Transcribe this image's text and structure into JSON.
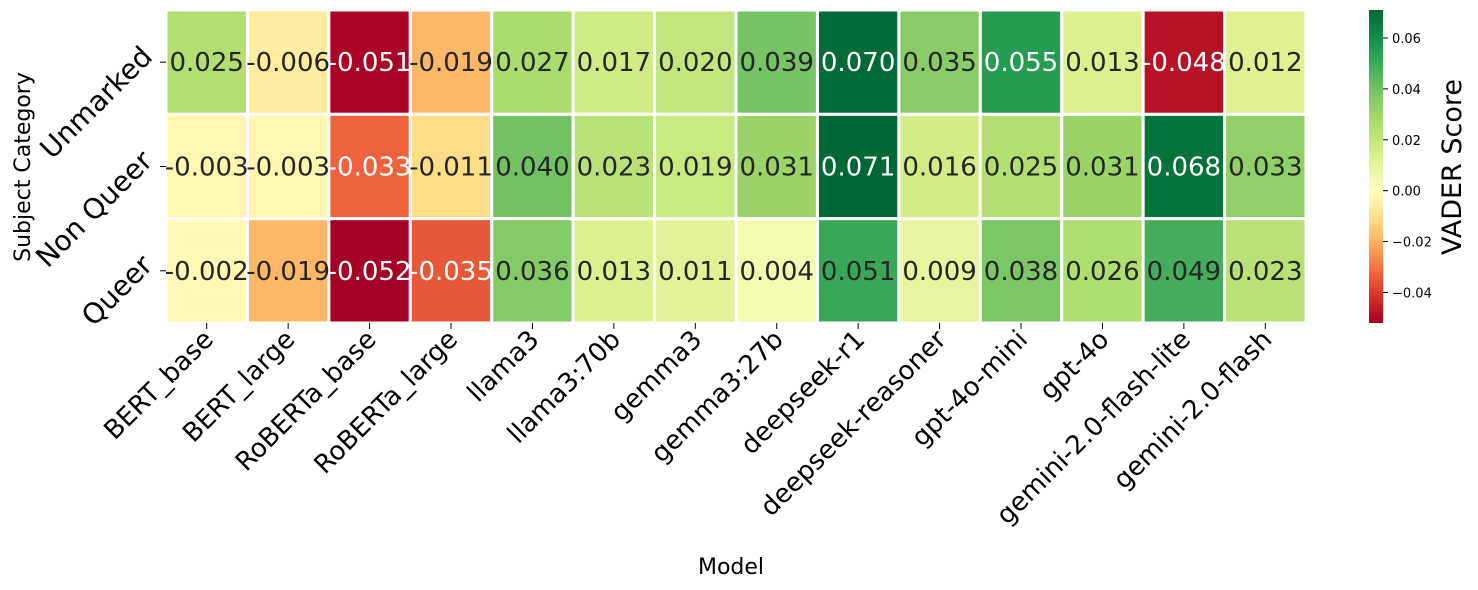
{
  "chart_data": {
    "type": "heatmap",
    "xlabel": "Model",
    "ylabel": "Subject Category",
    "colorbar_label": "VADER Score",
    "colormap": "RdYlGn",
    "value_range": [
      -0.052,
      0.071
    ],
    "colorbar_ticks": [
      "0.06",
      "0.04",
      "0.02",
      "0.00",
      "−0.02",
      "−0.04"
    ],
    "colorbar_tick_values": [
      0.06,
      0.04,
      0.02,
      0.0,
      -0.02,
      -0.04
    ],
    "columns": [
      "BERT_base",
      "BERT_large",
      "RoBERTa_base",
      "RoBERTa_large",
      "llama3",
      "llama3:70b",
      "gemma3",
      "gemma3:27b",
      "deepseek-r1",
      "deepseek-reasoner",
      "gpt-4o-mini",
      "gpt-4o",
      "gemini-2.0-flash-lite",
      "gemini-2.0-flash"
    ],
    "rows": [
      "Unmarked",
      "Non Queer",
      "Queer"
    ],
    "values": [
      [
        0.025,
        -0.006,
        -0.051,
        -0.019,
        0.027,
        0.017,
        0.02,
        0.039,
        0.07,
        0.035,
        0.055,
        0.013,
        -0.048,
        0.012
      ],
      [
        -0.003,
        -0.003,
        -0.033,
        -0.011,
        0.04,
        0.023,
        0.019,
        0.031,
        0.071,
        0.016,
        0.025,
        0.031,
        0.068,
        0.033
      ],
      [
        -0.002,
        -0.019,
        -0.052,
        -0.035,
        0.036,
        0.013,
        0.011,
        0.004,
        0.051,
        0.009,
        0.038,
        0.026,
        0.049,
        0.023
      ]
    ],
    "cell_labels": [
      [
        "0.025",
        "-0.006",
        "-0.051",
        "-0.019",
        "0.027",
        "0.017",
        "0.020",
        "0.039",
        "0.070",
        "0.035",
        "0.055",
        "0.013",
        "-0.048",
        "0.012"
      ],
      [
        "-0.003",
        "-0.003",
        "-0.033",
        "-0.011",
        "0.040",
        "0.023",
        "0.019",
        "0.031",
        "0.071",
        "0.016",
        "0.025",
        "0.031",
        "0.068",
        "0.033"
      ],
      [
        "-0.002",
        "-0.019",
        "-0.052",
        "-0.035",
        "0.036",
        "0.013",
        "0.011",
        "0.004",
        "0.051",
        "0.009",
        "0.038",
        "0.026",
        "0.049",
        "0.023"
      ]
    ]
  }
}
